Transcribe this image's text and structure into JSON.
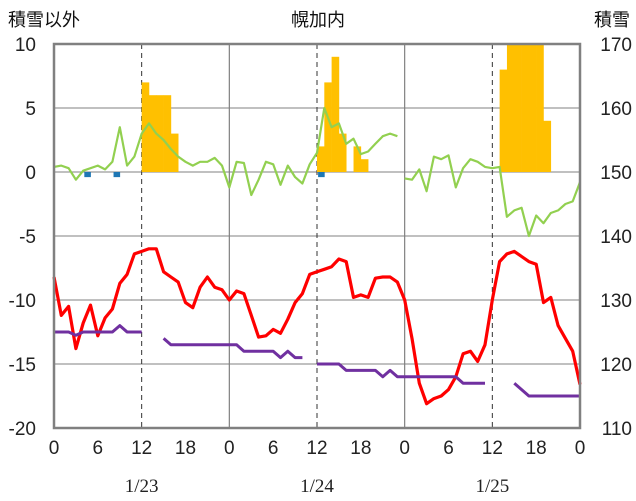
{
  "chart_data": {
    "type": "bar",
    "title": "幌加内",
    "y_left_label": "積雪以外",
    "y_right_label": "積雪",
    "ylim_left": [
      -20,
      10
    ],
    "ylim_right": [
      110,
      170
    ],
    "left_ticks": [
      "10",
      "5",
      "0",
      "-5",
      "-10",
      "-15",
      "-20"
    ],
    "right_ticks": [
      "170",
      "160",
      "150",
      "140",
      "130",
      "120",
      "110"
    ],
    "x_tick_labels": [
      "0",
      "6",
      "12",
      "18",
      "0",
      "6",
      "12",
      "18",
      "0",
      "6",
      "12",
      "18",
      "0"
    ],
    "date_labels": [
      "1/23",
      "1/24",
      "1/25"
    ],
    "xlim_hours": [
      0,
      72
    ],
    "colors": {
      "snowfall": "#FFC000",
      "precip": "#1F77B4",
      "wind": "#92D050",
      "temperature": "#FF0000",
      "snow_depth": "#7030A0",
      "frame": "#808080",
      "grid": "#808080"
    },
    "snowfall_bars": {
      "x": [
        1,
        2,
        3,
        4,
        5,
        6,
        7,
        8,
        9,
        10,
        11,
        12,
        13,
        14,
        15,
        16,
        17,
        18,
        19,
        20,
        21,
        22,
        23,
        24,
        25,
        26,
        27,
        28,
        29,
        30,
        31,
        32,
        33,
        34,
        35,
        36,
        37,
        38,
        39,
        40,
        41,
        42,
        43,
        44,
        45,
        46,
        47,
        48,
        49,
        50,
        51,
        52,
        53,
        54,
        55,
        56,
        57,
        58,
        59,
        60,
        61,
        62,
        63,
        64,
        65,
        66,
        67,
        68,
        69,
        70,
        71,
        72
      ],
      "values": [
        0,
        0,
        0,
        0,
        0,
        0,
        0,
        0,
        0,
        0,
        0,
        0,
        7,
        6,
        6,
        6,
        3,
        0,
        0,
        0,
        0,
        0,
        0,
        0,
        0,
        0,
        0,
        0,
        0,
        0,
        0,
        0,
        0,
        0,
        0,
        0,
        2,
        7,
        9,
        3,
        0,
        2,
        1,
        0,
        0,
        0,
        0,
        0,
        0,
        0,
        0,
        0,
        0,
        0,
        0,
        0,
        0,
        0,
        0,
        0,
        0,
        8,
        10,
        10,
        10,
        10,
        10,
        4,
        0,
        0,
        0,
        0
      ]
    },
    "precip_bars": {
      "x": [
        5,
        9,
        37
      ],
      "values": [
        -0.4,
        -0.4,
        -0.4
      ]
    },
    "wind": {
      "x": [
        0,
        1,
        2,
        3,
        4,
        5,
        6,
        7,
        8,
        9,
        10,
        11,
        12,
        13,
        14,
        15,
        16,
        17,
        18,
        19,
        20,
        21,
        22,
        23,
        24,
        25,
        26,
        27,
        28,
        29,
        30,
        31,
        32,
        33,
        34,
        35,
        36,
        37,
        38,
        39,
        40,
        41,
        42,
        43,
        44,
        45,
        46,
        47,
        48,
        49,
        50,
        51,
        52,
        53,
        54,
        55,
        56,
        57,
        58,
        59,
        60,
        61,
        62,
        63,
        64,
        65,
        66,
        67,
        68,
        69,
        70,
        71,
        72
      ],
      "values": [
        0.4,
        0.5,
        0.3,
        -0.6,
        0.1,
        0.3,
        0.5,
        0.2,
        0.8,
        3.5,
        0.5,
        1.2,
        3,
        3.8,
        3,
        2.5,
        1.8,
        1.2,
        0.8,
        0.5,
        0.8,
        0.8,
        1.1,
        0.5,
        -1.2,
        0.8,
        0.7,
        -1.8,
        -0.6,
        0.8,
        0.6,
        -1,
        0.5,
        -0.4,
        -0.9,
        0.6,
        1.5,
        5,
        3.5,
        3.8,
        2.2,
        2.6,
        1.4,
        1.6,
        2.2,
        2.8,
        3,
        2.8,
        null,
        null,
        null,
        null,
        null,
        null,
        null,
        null,
        null,
        null,
        null,
        null,
        null,
        null,
        null,
        null,
        null,
        null,
        null,
        null,
        null,
        null,
        null,
        null,
        null
      ],
      "segment2": {
        "x": [
          42,
          43,
          44,
          45,
          46,
          47,
          48,
          49,
          50,
          51,
          52,
          53,
          54,
          55,
          56,
          57,
          58,
          59,
          60,
          61,
          62,
          63,
          64,
          65,
          66,
          67,
          68,
          69,
          70,
          71,
          72
        ],
        "values": [
          null,
          null,
          null,
          null,
          null,
          null,
          null,
          null,
          null,
          null,
          null,
          null,
          null,
          null,
          null,
          null,
          null,
          null,
          null,
          null,
          null,
          null,
          null,
          null,
          null,
          null,
          null,
          null,
          null,
          null,
          null
        ]
      }
    },
    "temperature": {
      "x": [
        0,
        1,
        2,
        3,
        4,
        5,
        6,
        7,
        8,
        9,
        10,
        11,
        12,
        13,
        14,
        15,
        16,
        17,
        18,
        19,
        20,
        21,
        22,
        23,
        24,
        25,
        26,
        27,
        28,
        29,
        30,
        31,
        32,
        33,
        34,
        35,
        36,
        37,
        38,
        39,
        40,
        41,
        42,
        43,
        44,
        45,
        46,
        47,
        48,
        49,
        50,
        51,
        52,
        53,
        54,
        55,
        56,
        57,
        58,
        59,
        60,
        61,
        62,
        63,
        64,
        65,
        66,
        67,
        68,
        69,
        70,
        71,
        72
      ],
      "values": [
        -8.2,
        -11.2,
        -10.5,
        -13.8,
        -11.8,
        -10.4,
        -12.8,
        -11.4,
        -10.7,
        -8.7,
        -8,
        -6.4,
        -6.2,
        -6,
        -6,
        -7.8,
        -8.2,
        -8.6,
        -10.2,
        -10.6,
        -9,
        -8.2,
        -9,
        -9.2,
        -10,
        -9.3,
        -9.5,
        -11.2,
        -12.9,
        -12.8,
        -12.3,
        -12.6,
        -11.5,
        -10.2,
        -9.5,
        -8,
        -7.8,
        -7.6,
        -7.4,
        -6.8,
        -7,
        -9.8,
        -9.6,
        -9.8,
        -8.3,
        -8.2,
        -8.2,
        -8.6,
        -10,
        -13,
        -16.5,
        -18.1,
        -17.7,
        -17.5,
        -17,
        -16,
        -14.2,
        -14,
        -14.8,
        -13.5,
        -10,
        -7,
        -6.4,
        -6.2,
        -6.6,
        -7,
        -7.2,
        -10.2,
        -9.8,
        -12,
        -13,
        -14,
        -16.6
      ]
    },
    "snow_depth": {
      "segments": [
        {
          "x": [
            0,
            1,
            2,
            3,
            4,
            5,
            6,
            7,
            8,
            9,
            10,
            11,
            12
          ],
          "values": [
            125,
            125,
            125,
            124.5,
            125,
            125,
            125,
            125,
            125,
            126,
            125,
            125,
            125
          ]
        },
        {
          "x": [
            15,
            16,
            17,
            18,
            19,
            20,
            21,
            22,
            23,
            24,
            25,
            26,
            27,
            28,
            29,
            30,
            31,
            32,
            33,
            34,
            35,
            36,
            37,
            38,
            39,
            40,
            41,
            42,
            43,
            44,
            45,
            46,
            47,
            48,
            49,
            50,
            51,
            52,
            53,
            54,
            55,
            56,
            57,
            58,
            59,
            60,
            61,
            62,
            63,
            64,
            65,
            66,
            67,
            68,
            69,
            70,
            71,
            72
          ],
          "values": [
            124,
            123,
            123,
            123,
            123,
            123,
            123,
            123,
            123,
            123,
            123,
            122,
            122,
            122,
            122,
            122,
            121,
            122,
            121,
            121,
            null,
            120,
            120,
            120,
            120,
            119,
            119,
            119,
            119,
            119,
            118,
            119,
            118,
            118,
            118,
            118,
            118,
            118,
            118,
            118,
            118,
            117,
            117,
            117,
            117,
            null,
            null,
            null,
            117,
            116,
            115,
            115,
            115,
            115,
            115,
            115,
            115,
            115
          ]
        }
      ]
    }
  }
}
